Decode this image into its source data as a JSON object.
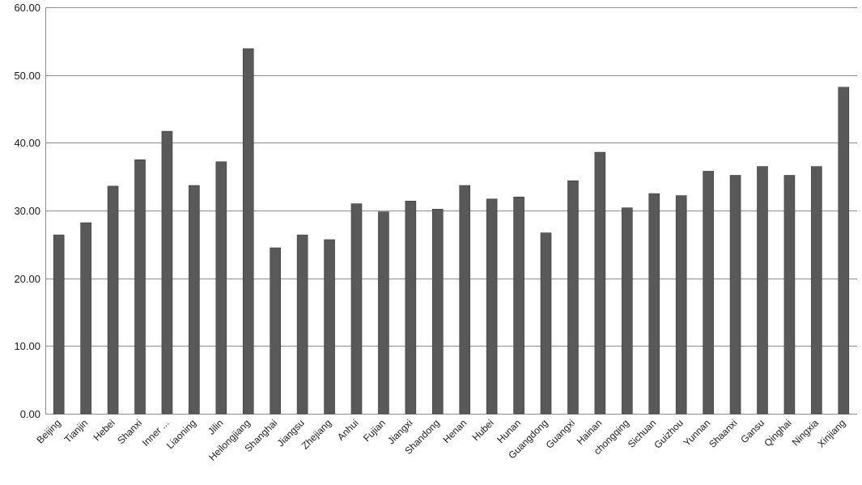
{
  "chart_data": {
    "type": "bar",
    "title": "",
    "xlabel": "",
    "ylabel": "",
    "ylim": [
      0,
      60
    ],
    "yticks": [
      0,
      10,
      20,
      30,
      40,
      50,
      60
    ],
    "ytick_labels": [
      "0.00",
      "10.00",
      "20.00",
      "30.00",
      "40.00",
      "50.00",
      "60.00"
    ],
    "grid": true,
    "legend": "none",
    "bar_color": "#595959",
    "categories": [
      "Beijing",
      "Tianjin",
      "Hebei",
      "Shanxi",
      "Inner ...",
      "Liaoning",
      "Jilin",
      "Heilongjiang",
      "Shanghai",
      "Jiangsu",
      "Zhejiang",
      "Anhui",
      "Fujian",
      "Jiangxi",
      "Shandong",
      "Henan",
      "Hubei",
      "Hunan",
      "Guangdong",
      "Guangxi",
      "Hainan",
      "chongqing",
      "Sichuan",
      "Guizhou",
      "Yunnan",
      "Shaanxi",
      "Gansu",
      "Qinghai",
      "Ningxia",
      "Xinjiang"
    ],
    "values": [
      26.4,
      28.2,
      33.6,
      37.5,
      41.7,
      33.7,
      37.2,
      53.9,
      24.5,
      26.4,
      25.7,
      31.0,
      29.8,
      31.4,
      30.2,
      33.7,
      31.7,
      32.0,
      26.7,
      34.4,
      38.6,
      30.4,
      32.5,
      32.2,
      35.8,
      35.2,
      36.5,
      35.2,
      36.5,
      48.2
    ]
  }
}
